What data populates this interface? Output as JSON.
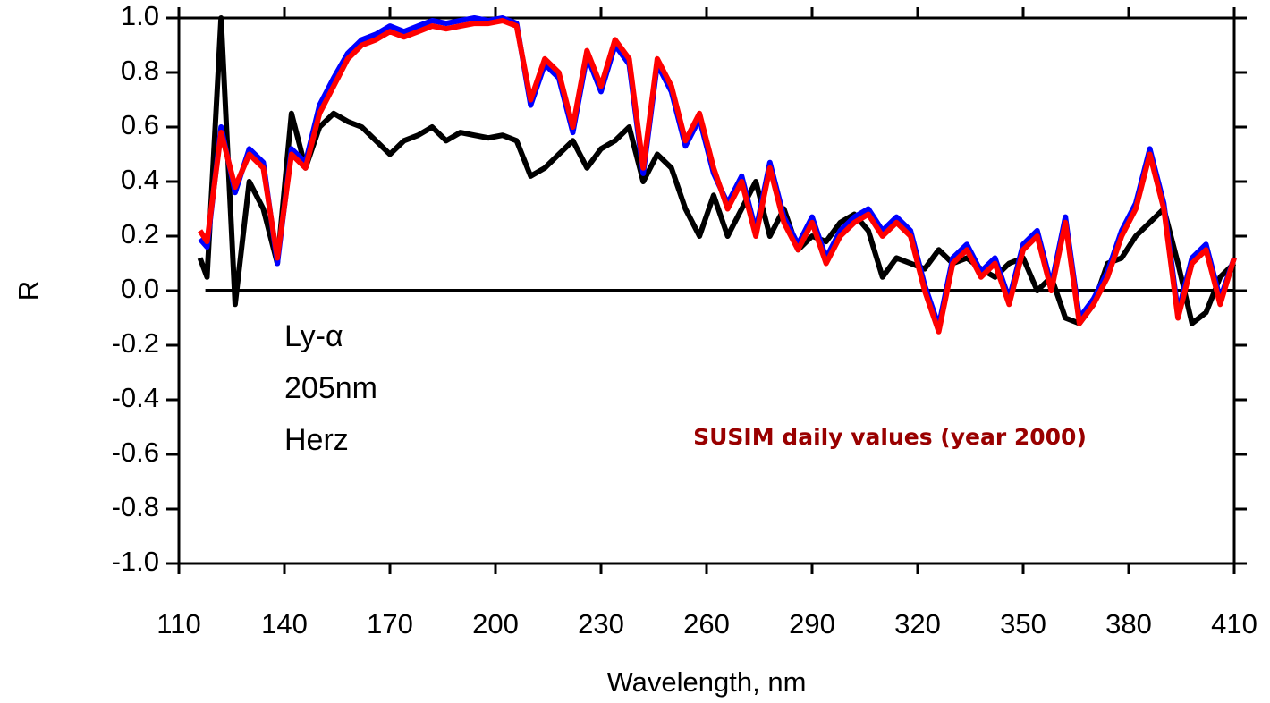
{
  "chart_data": {
    "type": "line",
    "xlabel": "Wavelength, nm",
    "ylabel": "R",
    "annotation": "SUSIM daily values (year 2000)",
    "xlim": [
      110,
      410
    ],
    "xticks": [
      110,
      140,
      170,
      200,
      230,
      260,
      290,
      320,
      350,
      380,
      410
    ],
    "ylim": [
      -1,
      1
    ],
    "yticks": [
      {
        "value": -1,
        "label": "-1.0"
      },
      -0.8,
      -0.6,
      -0.4,
      -0.2,
      {
        "value": 0,
        "label": "0.0"
      },
      0.2,
      0.4,
      0.6,
      0.8,
      {
        "value": 1,
        "label": "1.0"
      }
    ],
    "x": [
      116,
      118,
      122,
      126,
      130,
      134,
      138,
      142,
      146,
      150,
      154,
      158,
      162,
      166,
      170,
      174,
      178,
      182,
      186,
      190,
      194,
      198,
      202,
      206,
      210,
      214,
      218,
      222,
      226,
      230,
      234,
      238,
      242,
      246,
      250,
      254,
      258,
      262,
      266,
      270,
      274,
      278,
      282,
      286,
      290,
      294,
      298,
      302,
      306,
      310,
      314,
      318,
      322,
      326,
      330,
      334,
      338,
      342,
      346,
      350,
      354,
      358,
      362,
      366,
      370,
      374,
      378,
      382,
      386,
      390,
      394,
      398,
      402,
      406,
      410
    ],
    "series": [
      {
        "name": "Ly-α",
        "color": "#000000",
        "values": [
          0.12,
          0.05,
          1.0,
          -0.05,
          0.4,
          0.3,
          0.1,
          0.65,
          0.45,
          0.6,
          0.65,
          0.62,
          0.6,
          0.55,
          0.5,
          0.55,
          0.57,
          0.6,
          0.55,
          0.58,
          0.57,
          0.56,
          0.57,
          0.55,
          0.42,
          0.45,
          0.5,
          0.55,
          0.45,
          0.52,
          0.55,
          0.6,
          0.4,
          0.5,
          0.45,
          0.3,
          0.2,
          0.35,
          0.2,
          0.3,
          0.4,
          0.2,
          0.3,
          0.15,
          0.2,
          0.18,
          0.25,
          0.28,
          0.22,
          0.05,
          0.12,
          0.1,
          0.08,
          0.15,
          0.1,
          0.12,
          0.08,
          0.05,
          0.1,
          0.12,
          0.0,
          0.05,
          -0.1,
          -0.12,
          -0.05,
          0.1,
          0.12,
          0.2,
          0.25,
          0.3,
          0.1,
          -0.12,
          -0.08,
          0.05,
          0.1
        ]
      },
      {
        "name": "205nm",
        "color": "#0000ff",
        "values": [
          0.19,
          0.16,
          0.6,
          0.36,
          0.52,
          0.47,
          0.1,
          0.52,
          0.47,
          0.68,
          0.78,
          0.87,
          0.92,
          0.94,
          0.97,
          0.95,
          0.97,
          0.99,
          0.98,
          0.99,
          1.0,
          0.99,
          1.0,
          0.98,
          0.68,
          0.83,
          0.78,
          0.58,
          0.86,
          0.73,
          0.9,
          0.83,
          0.43,
          0.83,
          0.73,
          0.53,
          0.63,
          0.43,
          0.32,
          0.42,
          0.22,
          0.47,
          0.27,
          0.17,
          0.27,
          0.12,
          0.22,
          0.27,
          0.3,
          0.22,
          0.27,
          0.22,
          0.02,
          -0.13,
          0.12,
          0.17,
          0.07,
          0.12,
          -0.03,
          0.17,
          0.22,
          0.02,
          0.27,
          -0.1,
          -0.03,
          0.07,
          0.22,
          0.32,
          0.52,
          0.32,
          -0.08,
          0.12,
          0.17,
          -0.03,
          0.12
        ]
      },
      {
        "name": "Herz",
        "color": "#ff0000",
        "values": [
          0.22,
          0.18,
          0.58,
          0.38,
          0.5,
          0.45,
          0.12,
          0.5,
          0.45,
          0.65,
          0.75,
          0.85,
          0.9,
          0.92,
          0.95,
          0.93,
          0.95,
          0.97,
          0.96,
          0.97,
          0.98,
          0.98,
          0.99,
          0.97,
          0.7,
          0.85,
          0.8,
          0.6,
          0.88,
          0.75,
          0.92,
          0.85,
          0.45,
          0.85,
          0.75,
          0.55,
          0.65,
          0.45,
          0.3,
          0.4,
          0.2,
          0.45,
          0.25,
          0.15,
          0.25,
          0.1,
          0.2,
          0.25,
          0.28,
          0.2,
          0.25,
          0.2,
          0.0,
          -0.15,
          0.1,
          0.15,
          0.05,
          0.1,
          -0.05,
          0.15,
          0.2,
          0.0,
          0.25,
          -0.12,
          -0.05,
          0.05,
          0.2,
          0.3,
          0.5,
          0.3,
          -0.1,
          0.1,
          0.15,
          -0.05,
          0.12
        ]
      }
    ]
  }
}
